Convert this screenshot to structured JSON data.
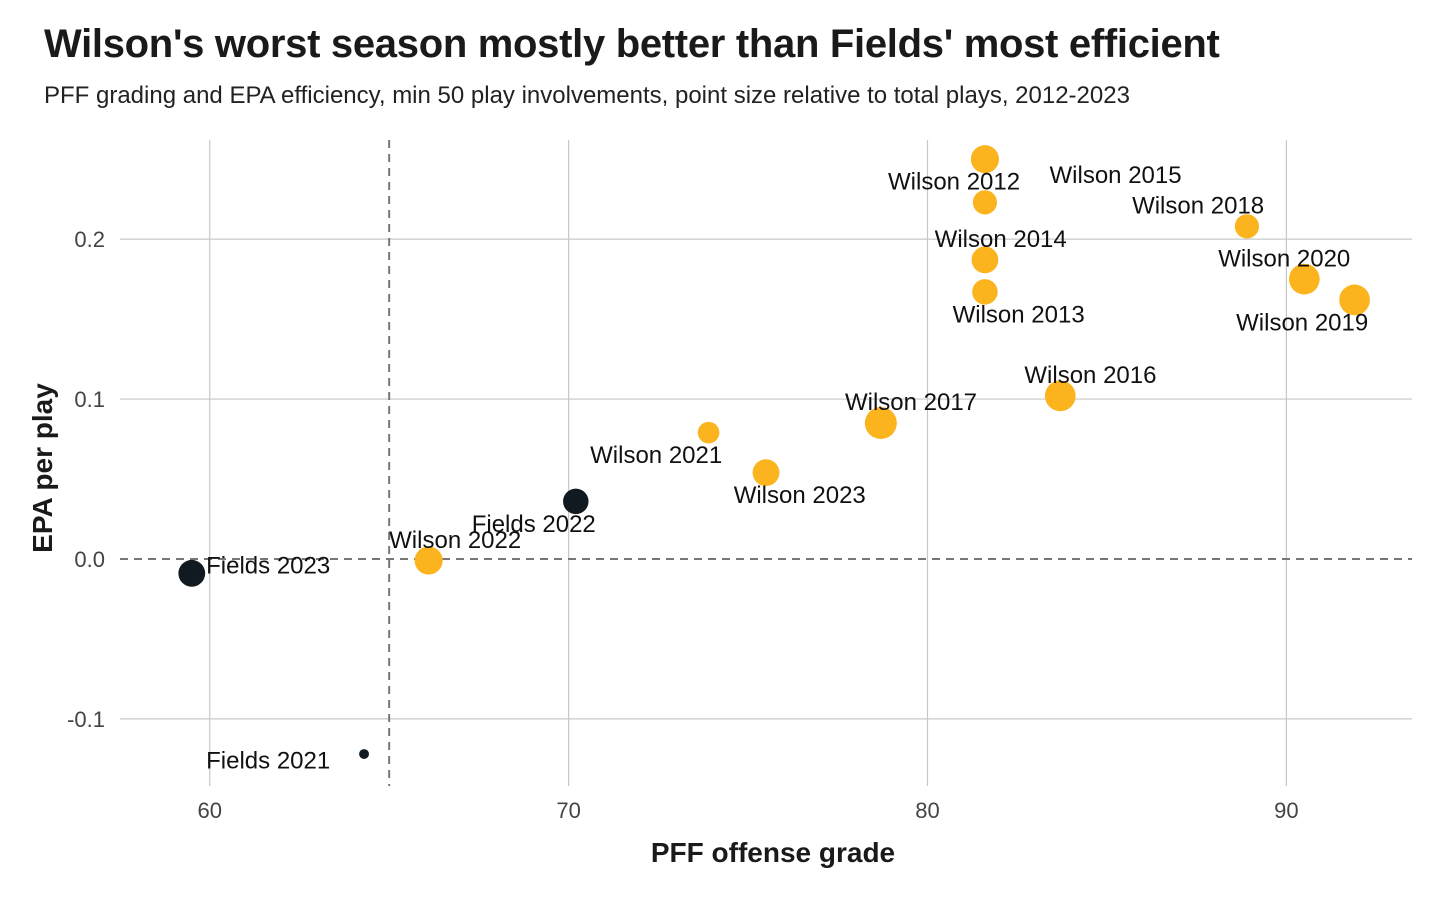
{
  "title": "Wilson's worst season mostly better than Fields' most efficient",
  "subtitle": "PFF grading and EPA efficiency, min 50 play involvements, point size relative to total plays, 2012-2023",
  "colors": {
    "Wilson": "#FBB41E",
    "Fields": "#111A21",
    "grid": "#c8c8c8",
    "refline": "#777777"
  },
  "chart_data": {
    "type": "scatter",
    "title": "Wilson's worst season mostly better than Fields' most efficient",
    "subtitle": "PFF grading and EPA efficiency, min 50 play involvements, point size relative to total plays, 2012-2023",
    "xlabel": "PFF offense grade",
    "ylabel": "EPA per play",
    "xlim": [
      57.5,
      93.5
    ],
    "ylim": [
      -0.142,
      0.262
    ],
    "xticks": [
      60,
      70,
      80,
      90
    ],
    "xtick_labels": [
      "60",
      "70",
      "80",
      "90"
    ],
    "yticks": [
      -0.1,
      0.0,
      0.1,
      0.2
    ],
    "ytick_labels": [
      "-0.1",
      "0.0",
      "0.1",
      "0.2"
    ],
    "grid": true,
    "reference_lines": {
      "vertical_x": 65,
      "horizontal_y": 0
    },
    "legend": "none",
    "points": [
      {
        "label": "Wilson 2015",
        "player": "Wilson",
        "x": 81.6,
        "y": 0.25,
        "size": 0.85,
        "lx": 1.8,
        "ly": -0.01
      },
      {
        "label": "Wilson 2012",
        "player": "Wilson",
        "x": 81.6,
        "y": 0.223,
        "size": 0.7,
        "lx": -2.7,
        "ly": 0.013
      },
      {
        "label": "Wilson 2018",
        "player": "Wilson",
        "x": 88.9,
        "y": 0.208,
        "size": 0.7,
        "lx": -3.2,
        "ly": 0.013
      },
      {
        "label": "Wilson 2014",
        "player": "Wilson",
        "x": 81.6,
        "y": 0.187,
        "size": 0.8,
        "lx": -1.4,
        "ly": 0.013
      },
      {
        "label": "Wilson 2020",
        "player": "Wilson",
        "x": 90.5,
        "y": 0.175,
        "size": 0.95,
        "lx": -2.4,
        "ly": 0.013
      },
      {
        "label": "Wilson 2013",
        "player": "Wilson",
        "x": 81.6,
        "y": 0.167,
        "size": 0.75,
        "lx": -0.9,
        "ly": -0.014
      },
      {
        "label": "Wilson 2019",
        "player": "Wilson",
        "x": 91.9,
        "y": 0.162,
        "size": 0.95,
        "lx": -3.3,
        "ly": -0.014
      },
      {
        "label": "Wilson 2016",
        "player": "Wilson",
        "x": 83.7,
        "y": 0.102,
        "size": 0.95,
        "lx": -1.0,
        "ly": 0.013
      },
      {
        "label": "Wilson 2017",
        "player": "Wilson",
        "x": 78.7,
        "y": 0.085,
        "size": 1.0,
        "lx": -1.0,
        "ly": 0.013
      },
      {
        "label": "Wilson 2021",
        "player": "Wilson",
        "x": 73.9,
        "y": 0.079,
        "size": 0.6,
        "lx": -3.3,
        "ly": -0.014
      },
      {
        "label": "Wilson 2023",
        "player": "Wilson",
        "x": 75.5,
        "y": 0.054,
        "size": 0.8,
        "lx": -0.9,
        "ly": -0.014
      },
      {
        "label": "Wilson 2022",
        "player": "Wilson",
        "x": 66.1,
        "y": -0.001,
        "size": 0.85,
        "lx": -1.1,
        "ly": 0.013
      },
      {
        "label": "Fields 2022",
        "player": "Fields",
        "x": 70.2,
        "y": 0.036,
        "size": 0.75,
        "lx": -2.9,
        "ly": -0.014
      },
      {
        "label": "Fields 2023",
        "player": "Fields",
        "x": 59.5,
        "y": -0.009,
        "size": 0.8,
        "lx": 0.4,
        "ly": 0.005
      },
      {
        "label": "Fields 2021",
        "player": "Fields",
        "x": 64.3,
        "y": -0.122,
        "size": 0.15,
        "lx": -4.4,
        "ly": -0.004
      }
    ]
  }
}
